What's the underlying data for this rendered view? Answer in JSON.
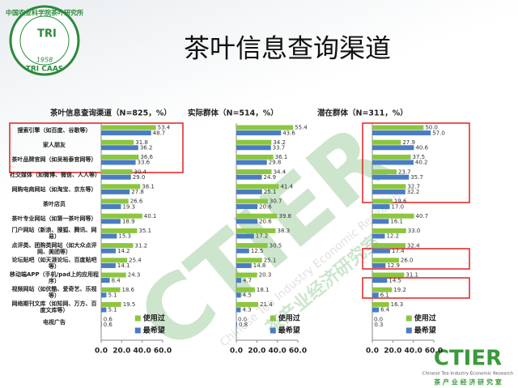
{
  "header": {
    "title": "茶叶信息查询渠道"
  },
  "logo": {
    "arc_text": "中国农业科学院茶叶研究所",
    "center": "TRI",
    "year": "1958",
    "bottom": "TRI CAAS"
  },
  "watermark": {
    "big": "CTIER",
    "english": "Chinese Tea Industry Economic Research",
    "chinese": "茶产业经济研究室"
  },
  "footer_logo": {
    "big": "CTIER",
    "english": "Chinese Tea Industry Economic Research",
    "chinese": "茶 产 业 经 济 研 究 室"
  },
  "chart_data": [
    {
      "type": "barh",
      "title": "茶叶信息查询渠道（N=825，%）",
      "categories": [
        "搜索引擎（如百度、谷歌等）",
        "家人朋友",
        "茶叶品牌官网（如吴裕泰官网等）",
        "社交媒体（如微博、微信、人人等）",
        "网购电商网站（如淘宝、京东等）",
        "茶叶店员",
        "茶叶专业网站（如第一茶叶网等）",
        "门户网站（新浪、搜狐、腾讯、网易）",
        "点评类、团购类网站（如大众点评网、美团等）",
        "论坛贴吧（如天涯论坛、百度贴吧等）",
        "移动端APP（手机/pad上的应用程序）",
        "视频网站（如优酷、爱奇艺、乐视等）",
        "网络期刊文库（如知网、万方、百度文库等）",
        "电视广告"
      ],
      "series": [
        {
          "name": "使用过",
          "color": "#8cc63e",
          "values": [
            53.4,
            31.8,
            36.6,
            30.4,
            38.1,
            26.6,
            40.1,
            35.1,
            31.2,
            25.4,
            24.3,
            18.6,
            19.5,
            0.6
          ],
          "value_labels": [
            "53.4",
            "31.8",
            "36.6",
            "30.4",
            "38.1",
            "26.6",
            "40.1",
            "35.1",
            "31.2",
            "25.4",
            "24.3",
            "18.6",
            "19.5",
            "0.6"
          ]
        },
        {
          "name": "最希望",
          "color": "#4a7cc4",
          "values": [
            48.7,
            36.2,
            33.6,
            29.0,
            27.8,
            19.3,
            18.9,
            15.3,
            14.2,
            14.1,
            8.4,
            5.1,
            5.1,
            0.6
          ],
          "value_labels": [
            "48.7",
            "36.2",
            "33.6",
            "29.0",
            "27.8",
            "19.3",
            "18.9",
            "15.3",
            "14.2",
            "14.1",
            "8.4",
            "5.1",
            "5.1",
            "0.6"
          ]
        }
      ],
      "xlim": [
        0,
        60
      ],
      "xticks": [
        {
          "value": 0,
          "label": "0.0"
        },
        {
          "value": 20,
          "label": "20.0"
        },
        {
          "value": 40,
          "label": "40.0"
        },
        {
          "value": 60,
          "label": "60.0"
        }
      ]
    },
    {
      "type": "barh",
      "title": "实际群体（N=514，%）",
      "series": [
        {
          "name": "使用过",
          "color": "#8cc63e",
          "values": [
            55.4,
            34.2,
            36.1,
            34.4,
            41.4,
            30.7,
            39.8,
            38.3,
            30.5,
            25.1,
            20.3,
            18.1,
            21.4,
            0.0
          ],
          "value_labels": [
            "55.4",
            "34.2",
            "36.1",
            "34.4",
            "41.4",
            "30.7",
            "39.8",
            "38.3",
            "30.5",
            "25.1",
            "20.3",
            "18.1",
            "21.4",
            "0.0"
          ]
        },
        {
          "name": "最希望",
          "color": "#4a7cc4",
          "values": [
            43.6,
            33.7,
            29.8,
            24.9,
            25.1,
            20.6,
            20.6,
            17.2,
            12.5,
            14.8,
            4.7,
            4.5,
            4.3,
            0.8
          ],
          "value_labels": [
            "43.6",
            "33.7",
            "29.8",
            "24.9",
            "25.1",
            "20.6",
            "20.6",
            "17.2",
            "12.5",
            "14.8",
            "4.7",
            "4.5",
            "4.3",
            "0.8"
          ]
        }
      ],
      "xlim": [
        0,
        60
      ],
      "xticks": [
        {
          "value": 0,
          "label": "0.0"
        },
        {
          "value": 20,
          "label": "20.0"
        },
        {
          "value": 40,
          "label": "40.0"
        },
        {
          "value": 60,
          "label": "60.0"
        }
      ]
    },
    {
      "type": "barh",
      "title": "潜在群体（N=311，%）",
      "series": [
        {
          "name": "使用过",
          "color": "#8cc63e",
          "values": [
            50.0,
            27.9,
            37.5,
            23.7,
            32.7,
            19.6,
            40.7,
            33.0,
            32.4,
            26.0,
            31.1,
            19.2,
            16.3,
            0.0
          ],
          "value_labels": [
            "50.0",
            "27.9",
            "37.5",
            "23.7",
            "32.7",
            "19.6",
            "40.7",
            "33.0",
            "32.4",
            "26.0",
            "31.1",
            "19.2",
            "16.3",
            "0.0"
          ]
        },
        {
          "name": "最希望",
          "color": "#4a7cc4",
          "values": [
            57.0,
            40.6,
            40.2,
            35.7,
            32.2,
            17.0,
            16.1,
            12.2,
            17.4,
            12.9,
            14.5,
            6.1,
            6.4,
            0.3
          ],
          "value_labels": [
            "57.0",
            "40.6",
            "40.2",
            "35.7",
            "32.2",
            "17.0",
            "16.1",
            "12.2",
            "17.4",
            "12.9",
            "14.5",
            "6.1",
            "6.4",
            "0.3"
          ]
        }
      ],
      "xlim": [
        0,
        60
      ],
      "xticks": [
        {
          "value": 0,
          "label": "0.0"
        },
        {
          "value": 20,
          "label": "20.0"
        },
        {
          "value": 40,
          "label": "40.0"
        },
        {
          "value": 60,
          "label": "60.0"
        }
      ]
    }
  ]
}
